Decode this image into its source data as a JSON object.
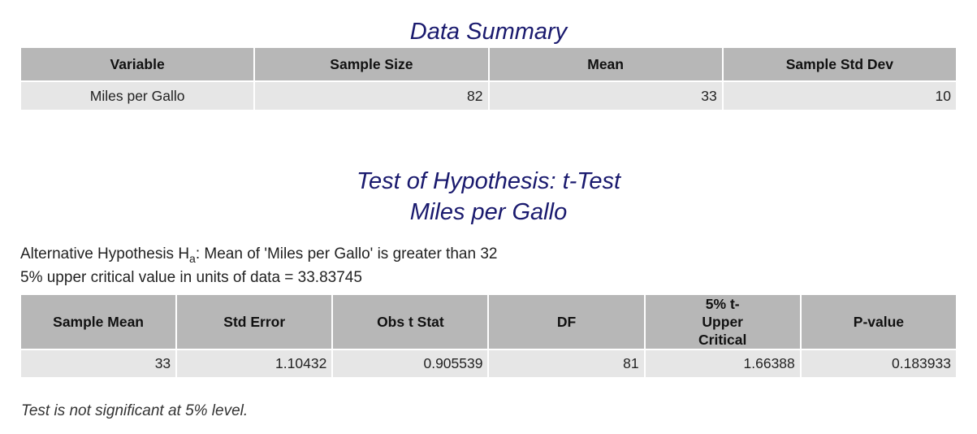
{
  "summary": {
    "title": "Data Summary",
    "headers": [
      "Variable",
      "Sample Size",
      "Mean",
      "Sample Std Dev"
    ],
    "row": [
      "Miles per Gallo",
      "82",
      "33",
      "10"
    ]
  },
  "test": {
    "title": "Test of Hypothesis: t-Test",
    "subtitle": "Miles per Gallo",
    "alt_prefix": "Alternative Hypothesis H",
    "alt_subscript": "a",
    "alt_suffix": ": Mean of 'Miles per Gallo' is greater than 32",
    "critical_line": "5% upper critical value in units of data = 33.83745",
    "headers": [
      "Sample Mean",
      "Std Error",
      "Obs t Stat",
      "DF",
      "5% t-Upper Critical",
      "P-value"
    ],
    "row": [
      "33",
      "1.10432",
      "0.905539",
      "81",
      "1.66388",
      "0.183933"
    ],
    "conclusion": "Test is not significant at 5% level."
  }
}
